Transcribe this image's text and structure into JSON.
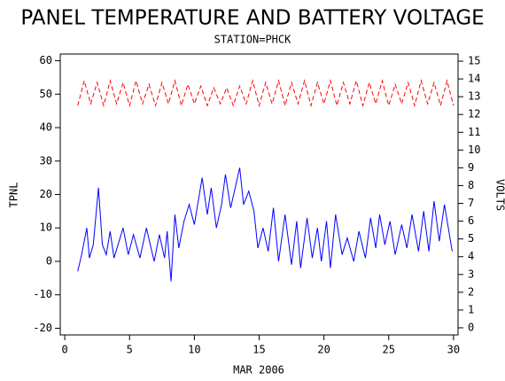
{
  "chart_data": {
    "type": "line",
    "title": "PANEL TEMPERATURE AND BATTERY VOLTAGE",
    "subtitle": "STATION=PHCK",
    "x_label": "MAR 2006",
    "y_label": "TPNL",
    "y2_label": "VOLTS",
    "xlim": [
      -0.35,
      30.35
    ],
    "xticks": [
      0,
      5,
      10,
      15,
      20,
      25,
      30
    ],
    "ylim": [
      -22,
      62
    ],
    "yticks": [
      -20,
      -10,
      0,
      10,
      20,
      30,
      40,
      50,
      60
    ],
    "y2lim": [
      -0.4,
      15.4
    ],
    "y2ticks": [
      0,
      1,
      2,
      3,
      4,
      5,
      6,
      7,
      8,
      9,
      10,
      11,
      12,
      13,
      14,
      15
    ],
    "series": [
      {
        "color": "#0000ff",
        "axis": "y",
        "dashed": false,
        "x": [
          1.0,
          1.3,
          1.7,
          1.9,
          2.2,
          2.6,
          2.9,
          3.2,
          3.5,
          3.8,
          4.5,
          4.9,
          5.3,
          5.8,
          6.3,
          6.9,
          7.3,
          7.7,
          7.9,
          8.2,
          8.5,
          8.8,
          9.2,
          9.6,
          10.0,
          10.3,
          10.6,
          11.0,
          11.3,
          11.7,
          12.1,
          12.4,
          12.8,
          13.5,
          13.8,
          14.2,
          14.6,
          14.9,
          15.3,
          15.7,
          16.1,
          16.5,
          17.0,
          17.5,
          17.9,
          18.2,
          18.7,
          19.1,
          19.5,
          19.8,
          20.2,
          20.5,
          20.9,
          21.4,
          21.8,
          22.3,
          22.7,
          23.2,
          23.6,
          24.0,
          24.3,
          24.7,
          25.1,
          25.5,
          26.0,
          26.4,
          26.8,
          27.3,
          27.7,
          28.1,
          28.5,
          28.9,
          29.3,
          29.9
        ],
        "values": [
          -3,
          2,
          10,
          1,
          5,
          22,
          5,
          2,
          9,
          1,
          10,
          2,
          8,
          1,
          10,
          0,
          8,
          1,
          9,
          -6,
          14,
          4,
          12,
          17,
          11,
          18,
          25,
          14,
          22,
          10,
          17,
          26,
          16,
          28,
          17,
          21,
          15,
          4,
          10,
          3,
          16,
          0,
          14,
          -1,
          12,
          -2,
          13,
          1,
          10,
          0,
          12,
          -2,
          14,
          2,
          7,
          0,
          9,
          1,
          13,
          4,
          14,
          5,
          12,
          2,
          11,
          4,
          14,
          3,
          15,
          3,
          18,
          6,
          17,
          3
        ]
      },
      {
        "color": "#ff0000",
        "axis": "y2",
        "dashed": true,
        "x": [
          1.0,
          1.5,
          2.0,
          2.5,
          3.0,
          3.5,
          4.0,
          4.5,
          5.0,
          5.5,
          6.0,
          6.5,
          7.0,
          7.5,
          8.0,
          8.5,
          9.0,
          9.5,
          10.0,
          10.5,
          11.0,
          11.5,
          12.0,
          12.5,
          13.0,
          13.5,
          14.0,
          14.5,
          15.0,
          15.5,
          16.0,
          16.5,
          17.0,
          17.5,
          18.0,
          18.5,
          19.0,
          19.5,
          20.0,
          20.5,
          21.0,
          21.5,
          22.0,
          22.5,
          23.0,
          23.5,
          24.0,
          24.5,
          25.0,
          25.5,
          26.0,
          26.5,
          27.0,
          27.5,
          28.0,
          28.5,
          29.0,
          29.5,
          30.0
        ],
        "values": [
          12.5,
          13.9,
          12.6,
          13.8,
          12.5,
          13.9,
          12.6,
          13.8,
          12.5,
          13.9,
          12.6,
          13.7,
          12.5,
          13.8,
          12.6,
          13.9,
          12.5,
          13.7,
          12.6,
          13.6,
          12.5,
          13.5,
          12.6,
          13.5,
          12.5,
          13.6,
          12.6,
          13.9,
          12.5,
          13.8,
          12.6,
          13.9,
          12.5,
          13.8,
          12.6,
          13.9,
          12.5,
          13.8,
          12.6,
          13.9,
          12.5,
          13.8,
          12.6,
          13.9,
          12.5,
          13.8,
          12.6,
          13.9,
          12.5,
          13.7,
          12.6,
          13.8,
          12.5,
          13.9,
          12.6,
          13.8,
          12.5,
          13.9,
          12.5
        ]
      }
    ]
  }
}
